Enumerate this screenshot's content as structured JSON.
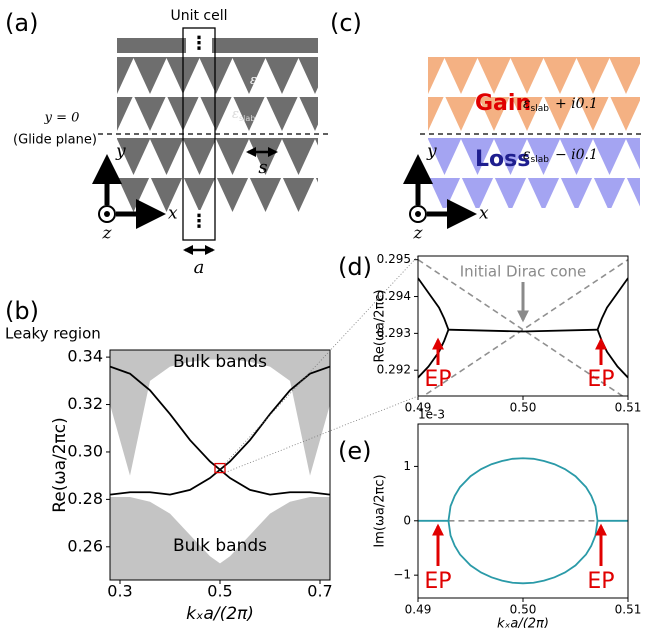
{
  "panel_labels": [
    "(a)",
    "(b)",
    "(c)",
    "(d)",
    "(e)"
  ],
  "diagram_a": {
    "unit_cell": "Unit cell",
    "dots": [
      "⋮",
      "⋮"
    ],
    "glide_y": "y = 0",
    "glide_plane": "(Glide plane)",
    "eps_air": {
      "symbol": "ε",
      "sub": "air"
    },
    "eps_slab": {
      "symbol": "ε",
      "sub": "slab"
    },
    "s": "s",
    "a": "a",
    "x": "x",
    "y": "y",
    "z": "z"
  },
  "diagram_c": {
    "gain": "Gain",
    "loss": "Loss",
    "gain_eps": {
      "symbol": "ε",
      "sub": "slab",
      "suffix": "+ i0.1"
    },
    "loss_eps": {
      "symbol": "ε",
      "sub": "slab",
      "suffix": "− i0.1"
    },
    "x": "x",
    "y": "y",
    "z": "z"
  },
  "chart_data": [
    {
      "type": "line",
      "xlabel": "kₓa/(2π)",
      "ylabel": "Re(ωa/2πc)",
      "annotations": {
        "leaky": "Leaky region",
        "bulk_top": "Bulk bands",
        "bulk_bottom": "Bulk bands"
      },
      "xlim": [
        0.28,
        0.72
      ],
      "ylim": [
        0.246,
        0.343
      ],
      "xticks": [
        0.3,
        0.5,
        0.7
      ],
      "yticks": [
        0.26,
        0.28,
        {
          "value": 0.3,
          "label": "0.30"
        },
        0.32,
        0.34
      ],
      "x": [
        0.28,
        0.32,
        0.36,
        0.4,
        0.44,
        0.48,
        0.5,
        0.52,
        0.56,
        0.6,
        0.64,
        0.68,
        0.72
      ],
      "series": [
        {
          "color": "#c4c4c4",
          "fill_to": "top",
          "values": [
            0.32,
            0.29,
            0.33,
            0.336,
            0.338,
            0.339,
            0.339,
            0.339,
            0.338,
            0.336,
            0.33,
            0.29,
            0.32
          ]
        },
        {
          "color": "#c4c4c4",
          "fill_to": "bottom",
          "values": [
            0.281,
            0.281,
            0.279,
            0.274,
            0.265,
            0.256,
            0.253,
            0.256,
            0.265,
            0.274,
            0.279,
            0.281,
            0.281
          ]
        },
        {
          "color": "#000000",
          "values": [
            0.336,
            0.333,
            0.326,
            0.316,
            0.305,
            0.296,
            0.2925,
            0.289,
            0.284,
            0.282,
            0.283,
            0.283,
            0.282
          ]
        },
        {
          "color": "#000000",
          "values": [
            0.282,
            0.283,
            0.283,
            0.282,
            0.284,
            0.289,
            0.2925,
            0.296,
            0.305,
            0.316,
            0.326,
            0.333,
            0.336
          ]
        }
      ],
      "highlight_color": "#e00000"
    },
    {
      "type": "line",
      "ylabel": "Re(ωa/2πc)",
      "annotations": {
        "dirac": "Initial Dirac cone",
        "ep_left": "EP",
        "ep_right": "EP"
      },
      "xlim": [
        0.49,
        0.51
      ],
      "ylim": [
        0.2913,
        0.2951
      ],
      "xticks": [
        0.49,
        {
          "value": 0.5,
          "label": "0.50"
        },
        0.51
      ],
      "yticks": [
        0.292,
        0.293,
        0.294,
        0.295
      ],
      "series": [
        {
          "color": "#909090",
          "dash": true,
          "x": [
            0.49,
            0.51
          ],
          "values": [
            0.295,
            0.2912
          ]
        },
        {
          "color": "#909090",
          "dash": true,
          "x": [
            0.49,
            0.51
          ],
          "values": [
            0.2912,
            0.295
          ]
        },
        {
          "color": "#000000",
          "x": [
            0.49,
            0.491,
            0.492,
            0.4925,
            0.4929
          ],
          "values": [
            0.2945,
            0.2941,
            0.2937,
            0.2934,
            0.2931
          ]
        },
        {
          "color": "#000000",
          "x": [
            0.49,
            0.491,
            0.492,
            0.4925,
            0.4929
          ],
          "values": [
            0.2918,
            0.2921,
            0.2925,
            0.2928,
            0.2931
          ]
        },
        {
          "color": "#000000",
          "x": [
            0.4929,
            0.5,
            0.5071
          ],
          "values": [
            0.2931,
            0.29305,
            0.2931
          ]
        },
        {
          "color": "#000000",
          "x": [
            0.5071,
            0.5075,
            0.508,
            0.509,
            0.51
          ],
          "values": [
            0.2931,
            0.2934,
            0.2937,
            0.2941,
            0.2945
          ]
        },
        {
          "color": "#000000",
          "x": [
            0.5071,
            0.5075,
            0.508,
            0.509,
            0.51
          ],
          "values": [
            0.2931,
            0.2928,
            0.2925,
            0.2921,
            0.2918
          ]
        }
      ]
    },
    {
      "type": "line",
      "xlabel": "kₓa/(2π)",
      "ylabel": "Im(ωa/2πc)",
      "offset_text": "1e-3",
      "annotations": {
        "ep_left": "EP",
        "ep_right": "EP"
      },
      "xlim": [
        0.49,
        0.51
      ],
      "ylim": [
        -1.42,
        1.78
      ],
      "xticks": [
        0.49,
        {
          "value": 0.5,
          "label": "0.50"
        },
        0.51
      ],
      "yticks": [
        {
          "value": -1,
          "label": "−1"
        },
        0,
        1
      ],
      "series": [
        {
          "color": "#909090",
          "dash": true,
          "x": [
            0.4929,
            0.5071
          ],
          "values": [
            0,
            0
          ]
        },
        {
          "color": "#2a9aa8",
          "x": [
            0.49,
            0.4929,
            0.4931,
            0.4935,
            0.494,
            0.495,
            0.496,
            0.497,
            0.498,
            0.499,
            0.5,
            0.501,
            0.502,
            0.503,
            0.504,
            0.505,
            0.506,
            0.5065,
            0.5069,
            0.5071,
            0.51
          ],
          "values": [
            0,
            0,
            0.27,
            0.46,
            0.62,
            0.82,
            0.95,
            1.04,
            1.1,
            1.14,
            1.15,
            1.14,
            1.1,
            1.04,
            0.95,
            0.82,
            0.62,
            0.46,
            0.27,
            0,
            0
          ]
        },
        {
          "color": "#2a9aa8",
          "x": [
            0.4929,
            0.4931,
            0.4935,
            0.494,
            0.495,
            0.496,
            0.497,
            0.498,
            0.499,
            0.5,
            0.501,
            0.502,
            0.503,
            0.504,
            0.505,
            0.506,
            0.5065,
            0.5069,
            0.5071
          ],
          "values": [
            0,
            -0.27,
            -0.46,
            -0.62,
            -0.82,
            -0.95,
            -1.04,
            -1.1,
            -1.14,
            -1.15,
            -1.14,
            -1.1,
            -1.04,
            -0.95,
            -0.82,
            -0.62,
            -0.46,
            -0.27,
            0
          ]
        }
      ]
    }
  ]
}
